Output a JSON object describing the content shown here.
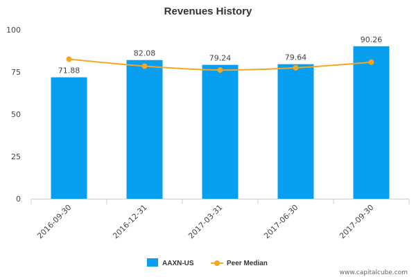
{
  "chart_data": {
    "type": "bar",
    "title": "Revenues History",
    "xlabel": "",
    "ylabel": "",
    "ylim": [
      0,
      100
    ],
    "yticks": [
      0,
      25,
      50,
      75,
      100
    ],
    "categories": [
      "2016-09-30",
      "2016-12-31",
      "2017-03-31",
      "2017-06-30",
      "2017-09-30"
    ],
    "series": [
      {
        "name": "AAXN-US",
        "kind": "bar",
        "color": "#089ff0",
        "values": [
          71.88,
          82.08,
          79.24,
          79.64,
          90.26
        ],
        "labels": [
          "71.88",
          "82.08",
          "79.24",
          "79.64",
          "90.26"
        ]
      },
      {
        "name": "Peer Median",
        "kind": "line",
        "color": "#f5a623",
        "values": [
          82.6,
          78.5,
          76.2,
          77.5,
          80.8
        ]
      }
    ],
    "grid": false,
    "legend": "bottom-center"
  },
  "credit": "www.capitalcube.com"
}
